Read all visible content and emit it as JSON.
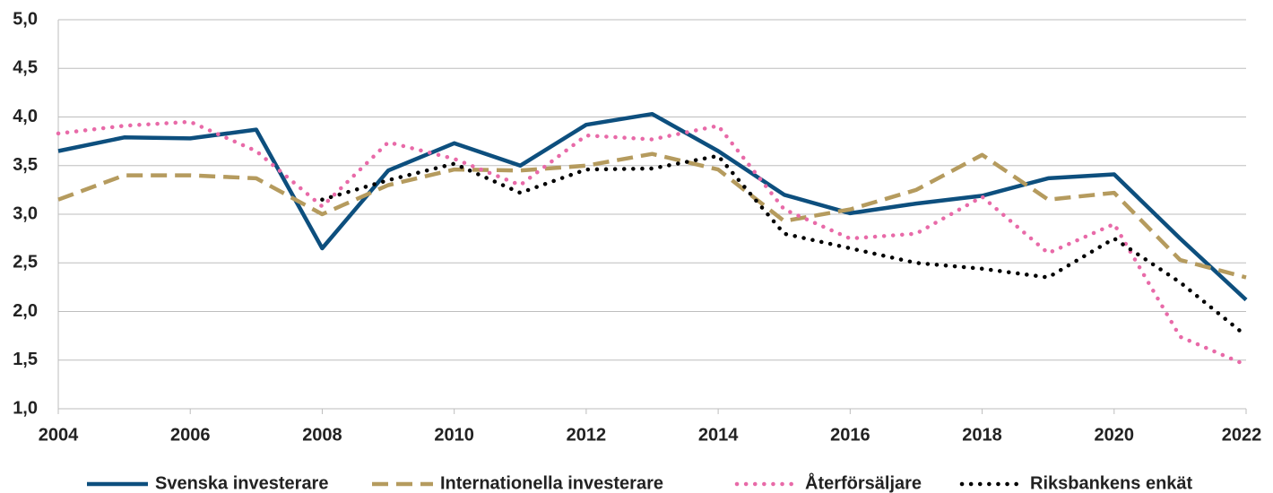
{
  "chart_data": {
    "type": "line",
    "x": [
      2004,
      2005,
      2006,
      2007,
      2008,
      2009,
      2010,
      2011,
      2012,
      2013,
      2014,
      2015,
      2016,
      2017,
      2018,
      2019,
      2020,
      2021,
      2022
    ],
    "xlim": [
      2004,
      2022
    ],
    "xticks": [
      2004,
      2006,
      2008,
      2010,
      2012,
      2014,
      2016,
      2018,
      2020,
      2022
    ],
    "ylim": [
      1,
      5
    ],
    "yticks": [
      {
        "value": 1,
        "label": "1,0"
      },
      {
        "value": 1.5,
        "label": "1,5"
      },
      {
        "value": 2,
        "label": "2,0"
      },
      {
        "value": 2.5,
        "label": "2,5"
      },
      {
        "value": 3,
        "label": "3,0"
      },
      {
        "value": 3.5,
        "label": "3,5"
      },
      {
        "value": 4,
        "label": "4,0"
      },
      {
        "value": 4.5,
        "label": "4,5"
      },
      {
        "value": 5,
        "label": "5,0"
      }
    ],
    "grid": true,
    "legend": "bottom",
    "series": [
      {
        "name": "Svenska investerare",
        "color": "#0d4f7e",
        "style": "solid",
        "values": [
          3.65,
          3.79,
          3.78,
          3.87,
          2.65,
          3.45,
          3.73,
          3.5,
          3.92,
          4.03,
          3.65,
          3.2,
          3.01,
          3.11,
          3.19,
          3.37,
          3.41,
          2.75,
          2.12
        ]
      },
      {
        "name": "Internationella investerare",
        "color": "#b59b5e",
        "style": "dashed",
        "values": [
          3.15,
          3.4,
          3.4,
          3.37,
          3.0,
          3.3,
          3.46,
          3.45,
          3.5,
          3.62,
          3.46,
          2.93,
          3.05,
          3.25,
          3.61,
          3.15,
          3.22,
          2.53,
          2.35
        ]
      },
      {
        "name": "Återförsäljare",
        "color": "#e86aa8",
        "style": "dotted",
        "values": [
          3.83,
          3.91,
          3.95,
          3.65,
          3.08,
          3.74,
          3.57,
          3.3,
          3.81,
          3.77,
          3.91,
          3.05,
          2.75,
          2.8,
          3.18,
          2.6,
          2.9,
          1.74,
          1.45
        ]
      },
      {
        "name": "Riksbankens enkät",
        "color": "#000000",
        "style": "dotted",
        "values": [
          null,
          null,
          null,
          null,
          3.15,
          3.35,
          3.52,
          3.22,
          3.46,
          3.47,
          3.6,
          2.8,
          2.65,
          2.5,
          2.44,
          2.35,
          2.75,
          2.3,
          1.75
        ]
      }
    ]
  }
}
